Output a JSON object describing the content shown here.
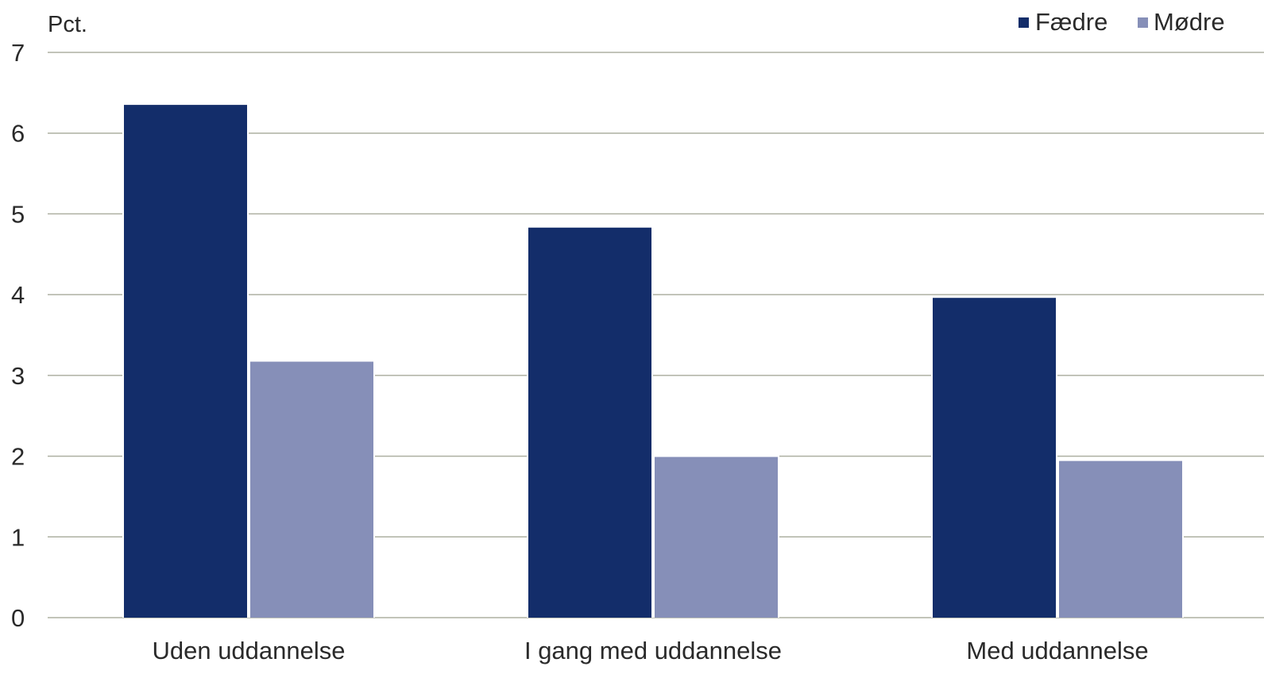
{
  "chart_data": {
    "type": "bar",
    "unit_label": "Pct.",
    "categories": [
      "Uden uddannelse",
      "I gang med uddannelse",
      "Med uddannelse"
    ],
    "series": [
      {
        "name": "Fædre",
        "values": [
          6.35,
          4.83,
          3.96
        ],
        "color": "#132d6a"
      },
      {
        "name": "Mødre",
        "values": [
          3.17,
          1.99,
          1.94
        ],
        "color": "#868fb8"
      }
    ],
    "ylim": [
      0,
      7
    ],
    "yticks": [
      0,
      1,
      2,
      3,
      4,
      5,
      6,
      7
    ],
    "grid": true,
    "legend_position": "top-right",
    "gridline_color": "#aeb0a2"
  }
}
